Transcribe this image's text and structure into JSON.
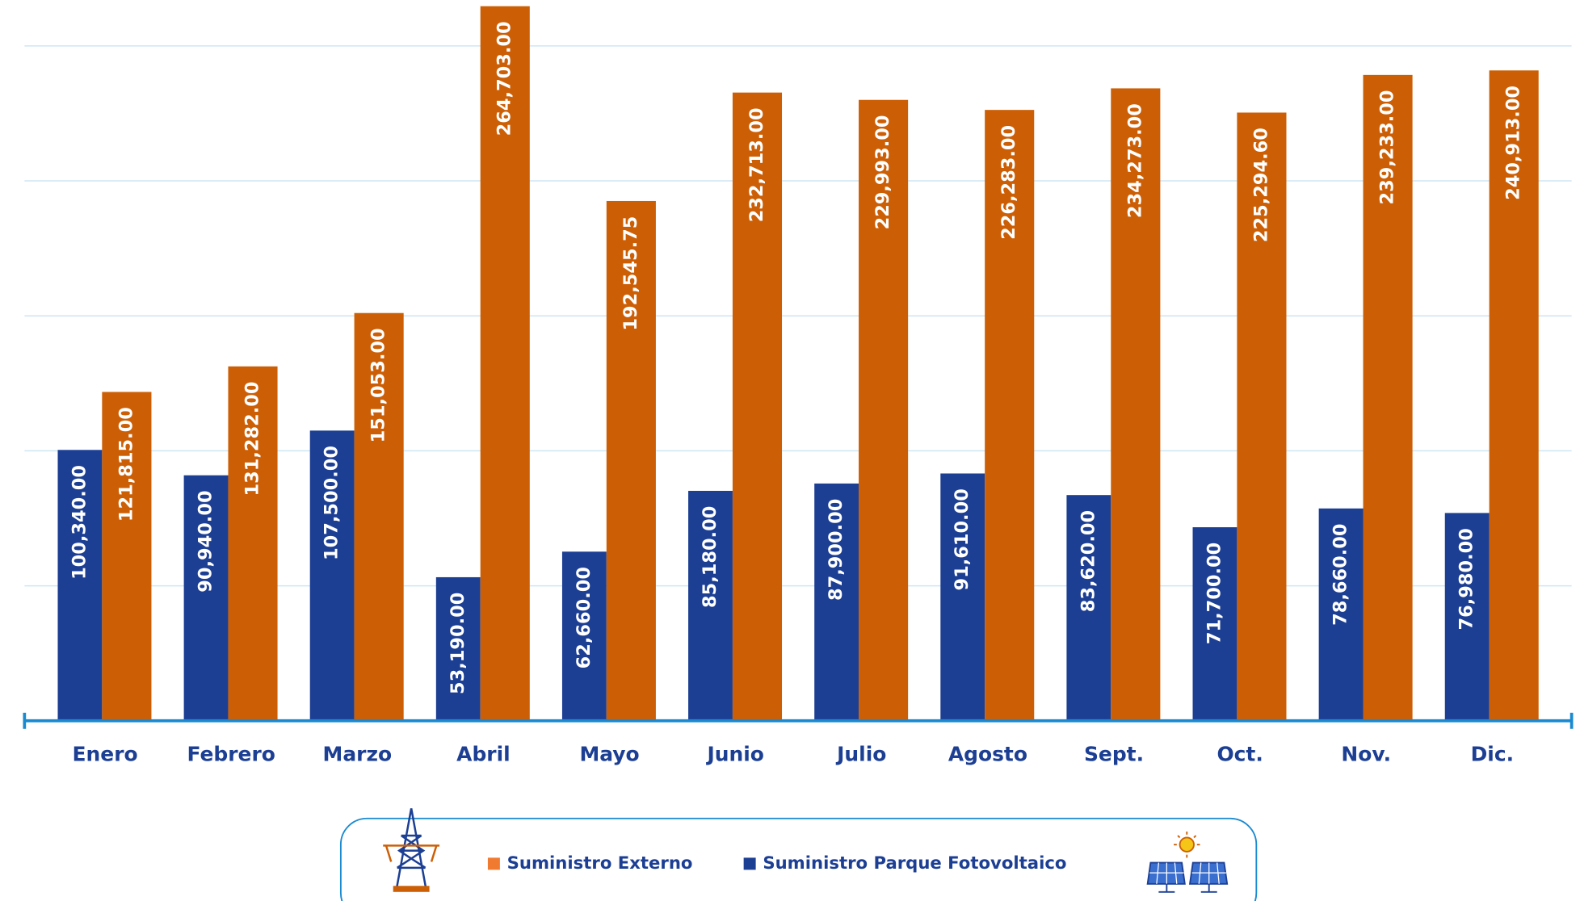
{
  "chart_data": {
    "type": "bar",
    "categories": [
      "Enero",
      "Febrero",
      "Marzo",
      "Abril",
      "Mayo",
      "Junio",
      "Julio",
      "Agosto",
      "Sept.",
      "Oct.",
      "Nov.",
      "Dic."
    ],
    "series": [
      {
        "name": "Suministro Parque Fotovoltaico",
        "color": "#1c3f94",
        "values": [
          100340,
          90940,
          107500,
          53190,
          62660,
          85180,
          87900,
          91610,
          83620,
          71700,
          78660,
          76980
        ],
        "value_labels": [
          "100,340.00",
          "90,940.00",
          "107,500.00",
          "53,190.00",
          "62,660.00",
          "85,180.00",
          "87,900.00",
          "91,610.00",
          "83,620.00",
          "71,700.00",
          "78,660.00",
          "76,980.00"
        ]
      },
      {
        "name": "Suministro Externo",
        "color": "#cc5f06",
        "values": [
          121815,
          131282,
          151053,
          264703,
          192545.75,
          232713,
          229993,
          226283,
          234273,
          225294.6,
          239233,
          240913
        ],
        "value_labels": [
          "121,815.00",
          "131,282.00",
          "151,053.00",
          "264,703.00",
          "192,545.75",
          "232,713.00",
          "229,993.00",
          "226,283.00",
          "234,273.00",
          "225,294.60",
          "239,233.00",
          "240,913.00"
        ]
      }
    ],
    "ylim": [
      0,
      267000
    ],
    "yticks": [
      50000,
      100000,
      150000,
      200000,
      250000
    ],
    "grid": true
  }
}
